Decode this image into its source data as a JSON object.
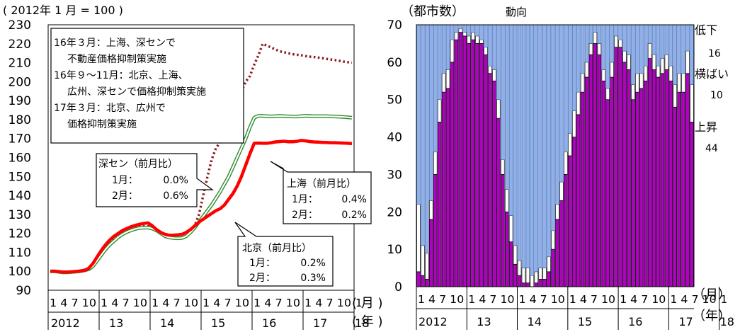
{
  "chart_data": [
    {
      "type": "line",
      "unit_label": "( 2012年 1 月 = 100 )",
      "ylim": [
        90,
        230
      ],
      "y_ticks": [
        90,
        100,
        110,
        120,
        130,
        140,
        150,
        160,
        170,
        180,
        190,
        200,
        210,
        220,
        230
      ],
      "x_month_labels": "1 4 7 10",
      "x_year_labels": [
        "2012",
        "13",
        "14",
        "15",
        "16",
        "17",
        "18"
      ],
      "month_unit": "( 月 )",
      "year_unit": "( 年 )",
      "series": [
        {
          "key": "shenzhen",
          "color": "#8b1a1a",
          "style": "dotted",
          "values": [
            100,
            100,
            99.5,
            99.2,
            99.3,
            99.6,
            99.9,
            100.2,
            100.6,
            101.5,
            103.5,
            107,
            110.5,
            113,
            115.5,
            117.5,
            119,
            120.5,
            121.5,
            122.3,
            123,
            123.4,
            123.7,
            123.7,
            123.5,
            122,
            120.5,
            119.5,
            119,
            119,
            119.2,
            119.8,
            120.5,
            121,
            124,
            130,
            140,
            150,
            159,
            165,
            168,
            174,
            180,
            185,
            190,
            195,
            200,
            203,
            209,
            214,
            220,
            219,
            218,
            217,
            216,
            215.5,
            215,
            214.5,
            214.2,
            214,
            213.5,
            213.2,
            213,
            212.7,
            212.4,
            212,
            211.7,
            211.4,
            211,
            210.6,
            210.3,
            210
          ]
        },
        {
          "key": "shanghai",
          "color": "#2e8b2e",
          "style": "double",
          "values": [
            100,
            100,
            99.7,
            99.4,
            99.4,
            99.6,
            99.8,
            100,
            100.4,
            101,
            102.5,
            105.5,
            108.5,
            111.5,
            114,
            116,
            118,
            119.5,
            120.7,
            121.6,
            122.3,
            122.8,
            123,
            123,
            122.5,
            121.5,
            120,
            118.5,
            117.8,
            117.5,
            117.4,
            117.5,
            118.5,
            120.5,
            123,
            126,
            129,
            132,
            135,
            138.5,
            142,
            146,
            150,
            155,
            160,
            165,
            170,
            176,
            181,
            182,
            182,
            181.8,
            181.7,
            181.8,
            181.9,
            181.8,
            181.7,
            181.6,
            181.6,
            181.8,
            182,
            181.9,
            181.8,
            181.8,
            181.8,
            181.8,
            181.7,
            181.6,
            181.5,
            181.4,
            181.2,
            181
          ]
        },
        {
          "key": "beijing",
          "color": "#ff0000",
          "style": "thick",
          "values": [
            100,
            100,
            99.8,
            99.6,
            99.6,
            99.7,
            99.9,
            100.1,
            100.5,
            101.5,
            104,
            107.5,
            111,
            114,
            116.5,
            118.5,
            120,
            121.5,
            122.5,
            123.5,
            124.2,
            124.8,
            125.2,
            125.5,
            124,
            122,
            120.5,
            119.5,
            119,
            119,
            119.2,
            119.5,
            120.5,
            122,
            124,
            126,
            127.5,
            129,
            130.5,
            132,
            133,
            135,
            138,
            141,
            145,
            150,
            156,
            162,
            167.5,
            167.6,
            167.5,
            167.5,
            167.8,
            168.2,
            168.4,
            168.6,
            168.3,
            168.3,
            168.5,
            169,
            168.8,
            168.4,
            168.2,
            168.1,
            168,
            167.9,
            167.8,
            167.8,
            167.7,
            167.6,
            167.5,
            167.3
          ]
        }
      ],
      "note_lines": [
        "16年３月：上海、深センで",
        "不動産価格抑制策実施",
        "16年９～11月：北京、上海、",
        "広州、深センで価格抑制策実施",
        "17年３月：北京、広州で",
        "価格抑制策実施"
      ],
      "callouts": {
        "shenzhen": {
          "title": "深セン（前月比）",
          "l1": "1月：",
          "v1": "0.0%",
          "l2": "2月：",
          "v2": "0.6%"
        },
        "shanghai": {
          "title": "上海（前月比）",
          "l1": "1月：",
          "v1": "0.4%",
          "l2": "2月：",
          "v2": "0.2%"
        },
        "beijing": {
          "title": "北京（前月比）",
          "l1": "1月：",
          "v1": "0.2%",
          "l2": "2月：",
          "v2": "0.3%"
        }
      }
    },
    {
      "type": "bar",
      "stacked": true,
      "unit_label": "（都市数）",
      "title": "動向",
      "ylim": [
        0,
        70
      ],
      "y_ticks": [
        0,
        10,
        20,
        30,
        40,
        50,
        60,
        70
      ],
      "x_month_labels": "1 4 7 10",
      "x_year_labels": [
        "2012",
        "13",
        "14",
        "15",
        "16",
        "17",
        "18"
      ],
      "month_unit": "（月）",
      "year_unit": "（年）",
      "colors": {
        "up": "#b000c0",
        "flat": "#ffffff",
        "down": "#8fb0e8"
      },
      "up": [
        4,
        3,
        2,
        18,
        30,
        44,
        52,
        53,
        60,
        66,
        68,
        67,
        65,
        66,
        65,
        65,
        62,
        57,
        55,
        45,
        30,
        20,
        12,
        6,
        3,
        1,
        1,
        0,
        1,
        2,
        2,
        4,
        10,
        18,
        23,
        30,
        35,
        40,
        46,
        52,
        56,
        62,
        65,
        62,
        55,
        50,
        56,
        64,
        64,
        60,
        58,
        50,
        52,
        53,
        55,
        61,
        58,
        56,
        57,
        58,
        55,
        48,
        52,
        52,
        57,
        44
      ],
      "flat": [
        18,
        8,
        7,
        5,
        6,
        6,
        5,
        5,
        6,
        2,
        1,
        1,
        2,
        2,
        2,
        1,
        2,
        2,
        3,
        5,
        4,
        6,
        7,
        5,
        4,
        4,
        4,
        3,
        3,
        3,
        3,
        4,
        5,
        4,
        5,
        6,
        6,
        7,
        6,
        5,
        4,
        3,
        3,
        3,
        3,
        3,
        4,
        3,
        2,
        3,
        4,
        4,
        5,
        4,
        4,
        4,
        4,
        3,
        4,
        4,
        4,
        6,
        5,
        5,
        6,
        10
      ],
      "down": [
        48,
        59,
        61,
        47,
        34,
        20,
        13,
        12,
        4,
        2,
        1,
        2,
        3,
        2,
        3,
        4,
        6,
        11,
        12,
        20,
        36,
        44,
        51,
        59,
        63,
        65,
        65,
        67,
        66,
        65,
        65,
        62,
        55,
        48,
        42,
        34,
        29,
        23,
        18,
        13,
        10,
        5,
        2,
        5,
        12,
        17,
        10,
        3,
        4,
        7,
        8,
        16,
        13,
        13,
        11,
        5,
        8,
        11,
        9,
        8,
        11,
        16,
        13,
        13,
        7,
        16
      ],
      "legend": [
        {
          "label": "低下",
          "value": "16"
        },
        {
          "label": "横ばい",
          "value": "10"
        },
        {
          "label": "上昇",
          "value": "44"
        }
      ]
    }
  ]
}
